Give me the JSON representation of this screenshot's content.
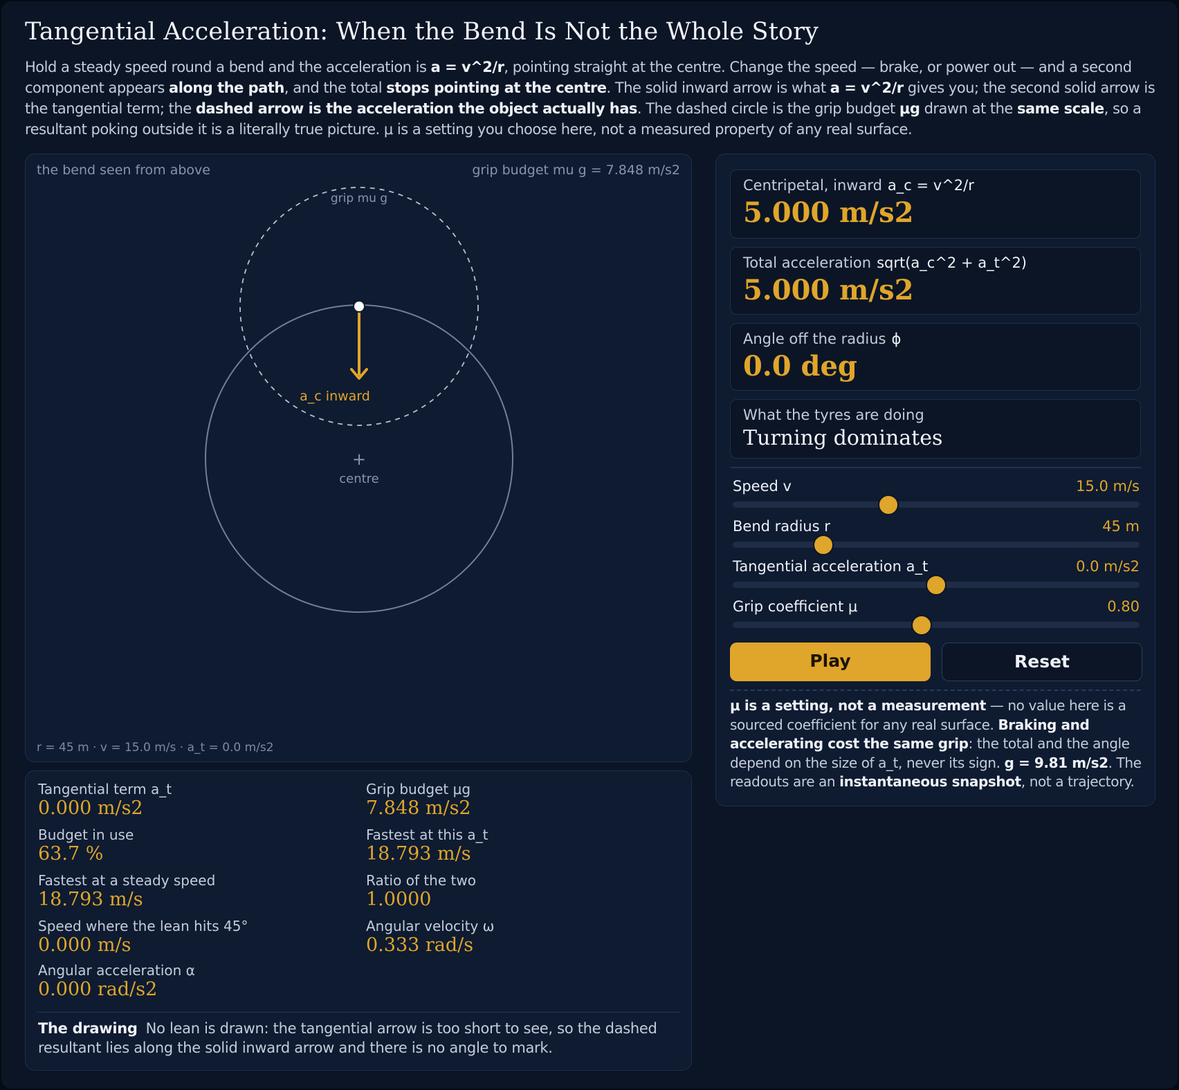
{
  "title": "Tangential Acceleration: When the Bend Is Not the Whole Story",
  "intro": {
    "p1": "Hold a steady speed round a bend and the acceleration is ",
    "b1": "a = v^2/r",
    "p2": ", pointing straight at the centre. Change the speed — brake, or power out — and a second component appears ",
    "b2": "along the path",
    "p3": ", and the total ",
    "b3": "stops pointing at the centre",
    "p4": ". The solid inward arrow is what ",
    "b4": "a = v^2/r",
    "p5": " gives you; the second solid arrow is the tangential term; the ",
    "b5": "dashed arrow is the acceleration the object actually has",
    "p6": ". The dashed circle is the grip budget ",
    "b6": "μg",
    "p7": " drawn at the ",
    "b7": "same scale",
    "p8": ", so a resultant poking outside it is a literally true picture. μ is a setting you choose here, not a measured property of any real surface."
  },
  "canvas": {
    "caption_left": "the bend seen from above",
    "caption_right": "grip budget mu g = 7.848 m/s2",
    "grip_label": "grip mu g",
    "arrow_label": "a_c inward",
    "centre_mark": "+",
    "centre_label": "centre",
    "caption_bottom": "r = 45 m  ·  v = 15.0 m/s  ·  a_t = 0.0 m/s2"
  },
  "stats": {
    "tangential_term": {
      "label": "Tangential term a_t",
      "value": "0.000 m/s2"
    },
    "grip_budget": {
      "label": "Grip budget μg",
      "value": "7.848 m/s2"
    },
    "budget_in_use": {
      "label": "Budget in use",
      "value": "63.7 %"
    },
    "fastest_at_at": {
      "label": "Fastest at this a_t",
      "value": "18.793 m/s"
    },
    "fastest_steady": {
      "label": "Fastest at a steady speed",
      "value": "18.793 m/s"
    },
    "ratio": {
      "label": "Ratio of the two",
      "value": "1.0000"
    },
    "lean_45": {
      "label": "Speed where the lean hits 45°",
      "value": "0.000 m/s"
    },
    "angular_velocity": {
      "label": "Angular velocity ω",
      "value": "0.333 rad/s"
    },
    "angular_accel": {
      "label": "Angular acceleration α",
      "value": "0.000 rad/s2"
    },
    "drawing_title": "The drawing",
    "drawing_text": "No lean is drawn: the tangential arrow is too short to see, so the dashed resultant lies along the solid inward arrow and there is no angle to mark."
  },
  "readouts": {
    "centripetal": {
      "label": "Centripetal, inward",
      "formula": "a_c = v^2/r",
      "value": "5.000 m/s2"
    },
    "total": {
      "label": "Total acceleration",
      "formula": "sqrt(a_c^2 + a_t^2)",
      "value": "5.000 m/s2"
    },
    "angle": {
      "label": "Angle off the radius",
      "formula": "ϕ",
      "value": "0.0 deg"
    },
    "tyres": {
      "label": "What the tyres are doing",
      "value": "Turning dominates"
    }
  },
  "sliders": {
    "speed": {
      "label": "Speed v",
      "value": "15.0 m/s",
      "position": 0.383
    },
    "radius": {
      "label": "Bend radius r",
      "value": "45 m",
      "position": 0.222
    },
    "tangential": {
      "label": "Tangential acceleration a_t",
      "value": "0.0 m/s2",
      "position": 0.5
    },
    "grip": {
      "label": "Grip coefficient μ",
      "value": "0.80",
      "position": 0.465
    }
  },
  "buttons": {
    "play": "Play",
    "reset": "Reset"
  },
  "note": {
    "b1": "μ is a setting, not a measurement",
    "p1": " — no value here is a sourced coefficient for any real surface. ",
    "b2": "Braking and accelerating cost the same grip",
    "p2": ": the total and the angle depend on the size of a_t, never its sign. ",
    "b3": "g = 9.81 m/s2",
    "p3": ". The readouts are an ",
    "b4": "instantaneous snapshot",
    "p4": ", not a trajectory."
  },
  "colors": {
    "accent": "#e0a52b",
    "background": "#0b1526",
    "panel": "#0e1b31"
  }
}
